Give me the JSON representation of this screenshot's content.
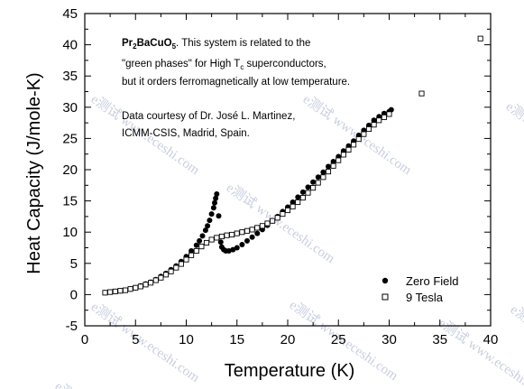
{
  "chart_data": {
    "type": "scatter",
    "xlabel": "Temperature (K)",
    "ylabel": "Heat Capacity (J/mole-K)",
    "xlim": [
      0,
      40
    ],
    "ylim": [
      -5,
      45
    ],
    "xticks": [
      "0",
      "5",
      "10",
      "15",
      "20",
      "25",
      "30",
      "35",
      "40"
    ],
    "yticks": [
      "-5",
      "0",
      "5",
      "10",
      "15",
      "20",
      "25",
      "30",
      "35",
      "40",
      "45"
    ],
    "grid": false,
    "legend_position": "bottom-right",
    "annotation": {
      "line1_main": "Pr",
      "line1_sub1": "2",
      "line1_mid": "BaCuO",
      "line1_sub2": "5",
      "line1_rest": ". This system is related to the",
      "line2_pre": "\"green phases\" for High T",
      "line2_sub": "c",
      "line2_post": " superconductors,",
      "line3": "but it orders ferromagnetically at low temperature.",
      "line4": "Data courtesy of Dr. José L. Martinez,",
      "line5": "ICMM-CSIS, Madrid, Spain."
    },
    "watermarks": [
      "e测试 www.eceshi.com",
      "e测试 www.eceshi.com",
      "e测试 www.eceshi.com",
      "e测试 www.eceshi.com",
      "e测试 www.eceshi.com",
      "e测试 www.eceshi.com",
      "e测试 www.eceshi.com",
      "e测",
      "e测"
    ],
    "series": [
      {
        "name": "Zero Field",
        "marker": "filled-circle",
        "color": "#000000",
        "x": [
          2.0,
          2.5,
          3.0,
          3.5,
          4.0,
          4.5,
          5.0,
          5.5,
          6.0,
          6.5,
          7.0,
          7.5,
          8.0,
          8.5,
          9.0,
          9.5,
          10.0,
          10.5,
          11.0,
          11.3,
          11.6,
          11.9,
          12.1,
          12.3,
          12.5,
          12.7,
          12.8,
          12.9,
          13.0,
          13.2,
          13.4,
          13.5,
          13.7,
          13.9,
          14.2,
          14.6,
          15.0,
          15.5,
          16.0,
          16.5,
          17.0,
          17.5,
          18.0,
          18.5,
          19.0,
          19.5,
          20.0,
          20.5,
          21.0,
          21.5,
          22.0,
          22.5,
          23.0,
          23.5,
          24.0,
          24.5,
          25.0,
          25.5,
          26.0,
          26.5,
          27.0,
          27.5,
          28.0,
          28.5,
          29.0,
          29.5,
          30.0,
          30.2
        ],
        "y": [
          0.3,
          0.4,
          0.5,
          0.6,
          0.7,
          0.9,
          1.1,
          1.4,
          1.7,
          2.0,
          2.4,
          2.9,
          3.4,
          4.0,
          4.6,
          5.3,
          6.1,
          7.0,
          7.9,
          8.6,
          9.4,
          10.3,
          11.0,
          11.9,
          12.9,
          13.9,
          14.7,
          15.4,
          16.1,
          12.6,
          8.4,
          7.6,
          7.2,
          7.0,
          7.0,
          7.2,
          7.5,
          8.0,
          8.6,
          9.2,
          9.8,
          10.4,
          11.1,
          11.8,
          12.5,
          13.3,
          14.0,
          14.8,
          15.6,
          16.4,
          17.2,
          18.0,
          18.8,
          19.6,
          20.5,
          21.3,
          22.1,
          23.0,
          23.8,
          24.6,
          25.5,
          26.3,
          27.1,
          27.9,
          28.5,
          29.0,
          29.3,
          29.6
        ]
      },
      {
        "name": "9 Tesla",
        "marker": "open-square",
        "color": "#000000",
        "x": [
          2.0,
          2.5,
          3.0,
          3.5,
          4.0,
          4.5,
          5.0,
          5.5,
          6.0,
          6.5,
          7.0,
          7.5,
          8.0,
          8.5,
          9.0,
          9.5,
          10.0,
          10.5,
          11.0,
          11.5,
          12.0,
          12.5,
          13.0,
          13.5,
          14.0,
          14.5,
          15.0,
          15.5,
          16.0,
          16.5,
          17.0,
          17.5,
          18.0,
          18.5,
          19.0,
          19.5,
          20.0,
          20.5,
          21.0,
          21.5,
          22.0,
          22.5,
          23.0,
          23.5,
          24.0,
          24.5,
          25.0,
          25.5,
          26.0,
          26.5,
          27.0,
          27.5,
          28.0,
          28.5,
          29.0,
          29.5,
          30.0,
          33.2,
          39.0
        ],
        "y": [
          0.3,
          0.4,
          0.5,
          0.6,
          0.7,
          0.9,
          1.1,
          1.3,
          1.6,
          1.9,
          2.3,
          2.7,
          3.2,
          3.7,
          4.3,
          4.9,
          5.6,
          6.3,
          7.0,
          7.7,
          8.3,
          8.8,
          9.1,
          9.3,
          9.5,
          9.6,
          9.8,
          10.0,
          10.2,
          10.4,
          10.7,
          11.0,
          11.4,
          11.8,
          12.3,
          12.9,
          13.5,
          14.1,
          14.8,
          15.5,
          16.3,
          17.1,
          17.9,
          18.8,
          19.7,
          20.6,
          21.5,
          22.4,
          23.2,
          24.0,
          24.9,
          25.7,
          26.5,
          27.2,
          27.9,
          28.4,
          28.9,
          32.2,
          41.0
        ]
      }
    ]
  }
}
